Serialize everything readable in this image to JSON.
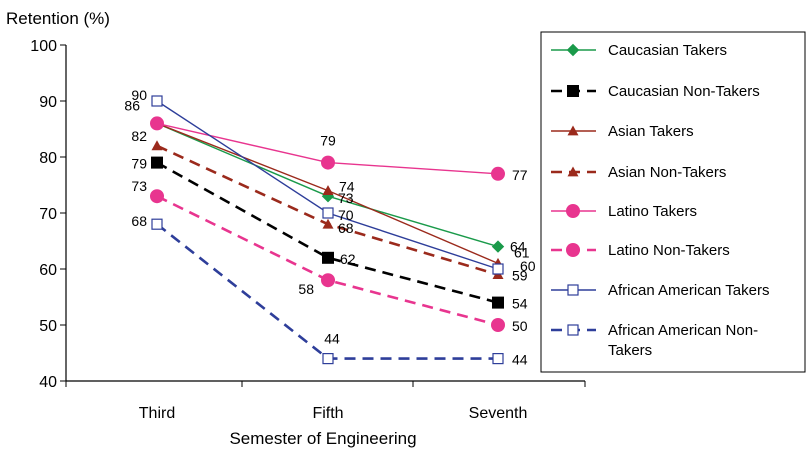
{
  "chart_data": {
    "type": "line",
    "title": "",
    "ylabel": "Retention (%)",
    "xlabel": "Semester of Engineering",
    "categories": [
      "Third",
      "Fifth",
      "Seventh"
    ],
    "ylim": [
      40,
      100
    ],
    "yticks": [
      40,
      50,
      60,
      70,
      80,
      90,
      100
    ],
    "grid": false,
    "legend_position": "right",
    "series": [
      {
        "name": "Caucasian Takers",
        "values": [
          86,
          73,
          64
        ],
        "color": "#1a9a4a",
        "dash": "solid",
        "marker": "diamond",
        "labels": [
          "86",
          "73",
          "64"
        ]
      },
      {
        "name": "Caucasian Non-Takers",
        "values": [
          79,
          62,
          54
        ],
        "color": "#000000",
        "dash": "dashed",
        "marker": "square-filled",
        "labels": [
          "79",
          "62",
          "54"
        ]
      },
      {
        "name": "Asian Takers",
        "values": [
          86,
          74,
          61
        ],
        "color": "#9b2a1c",
        "dash": "solid",
        "marker": "triangle",
        "labels": [
          "",
          "74",
          "61"
        ]
      },
      {
        "name": "Asian Non-Takers",
        "values": [
          82,
          68,
          59
        ],
        "color": "#9b2a1c",
        "dash": "dashed",
        "marker": "triangle",
        "labels": [
          "82",
          "68",
          "59"
        ]
      },
      {
        "name": "Latino Takers",
        "values": [
          86,
          79,
          77
        ],
        "color": "#e8358f",
        "dash": "solid",
        "marker": "circle",
        "labels": [
          "",
          "79",
          "77"
        ]
      },
      {
        "name": "Latino Non-Takers",
        "values": [
          73,
          58,
          50
        ],
        "color": "#e8358f",
        "dash": "dashed",
        "marker": "circle",
        "labels": [
          "73",
          "58",
          "50"
        ]
      },
      {
        "name": "African American Takers",
        "values": [
          90,
          70,
          60
        ],
        "color": "#2e3e9a",
        "dash": "solid",
        "marker": "square-open",
        "labels": [
          "90",
          "70",
          "60"
        ]
      },
      {
        "name": "African American Non-Takers",
        "values": [
          68,
          44,
          44
        ],
        "color": "#2e3e9a",
        "dash": "dashed",
        "marker": "square-open",
        "labels": [
          "68",
          "44",
          "44"
        ]
      }
    ]
  }
}
